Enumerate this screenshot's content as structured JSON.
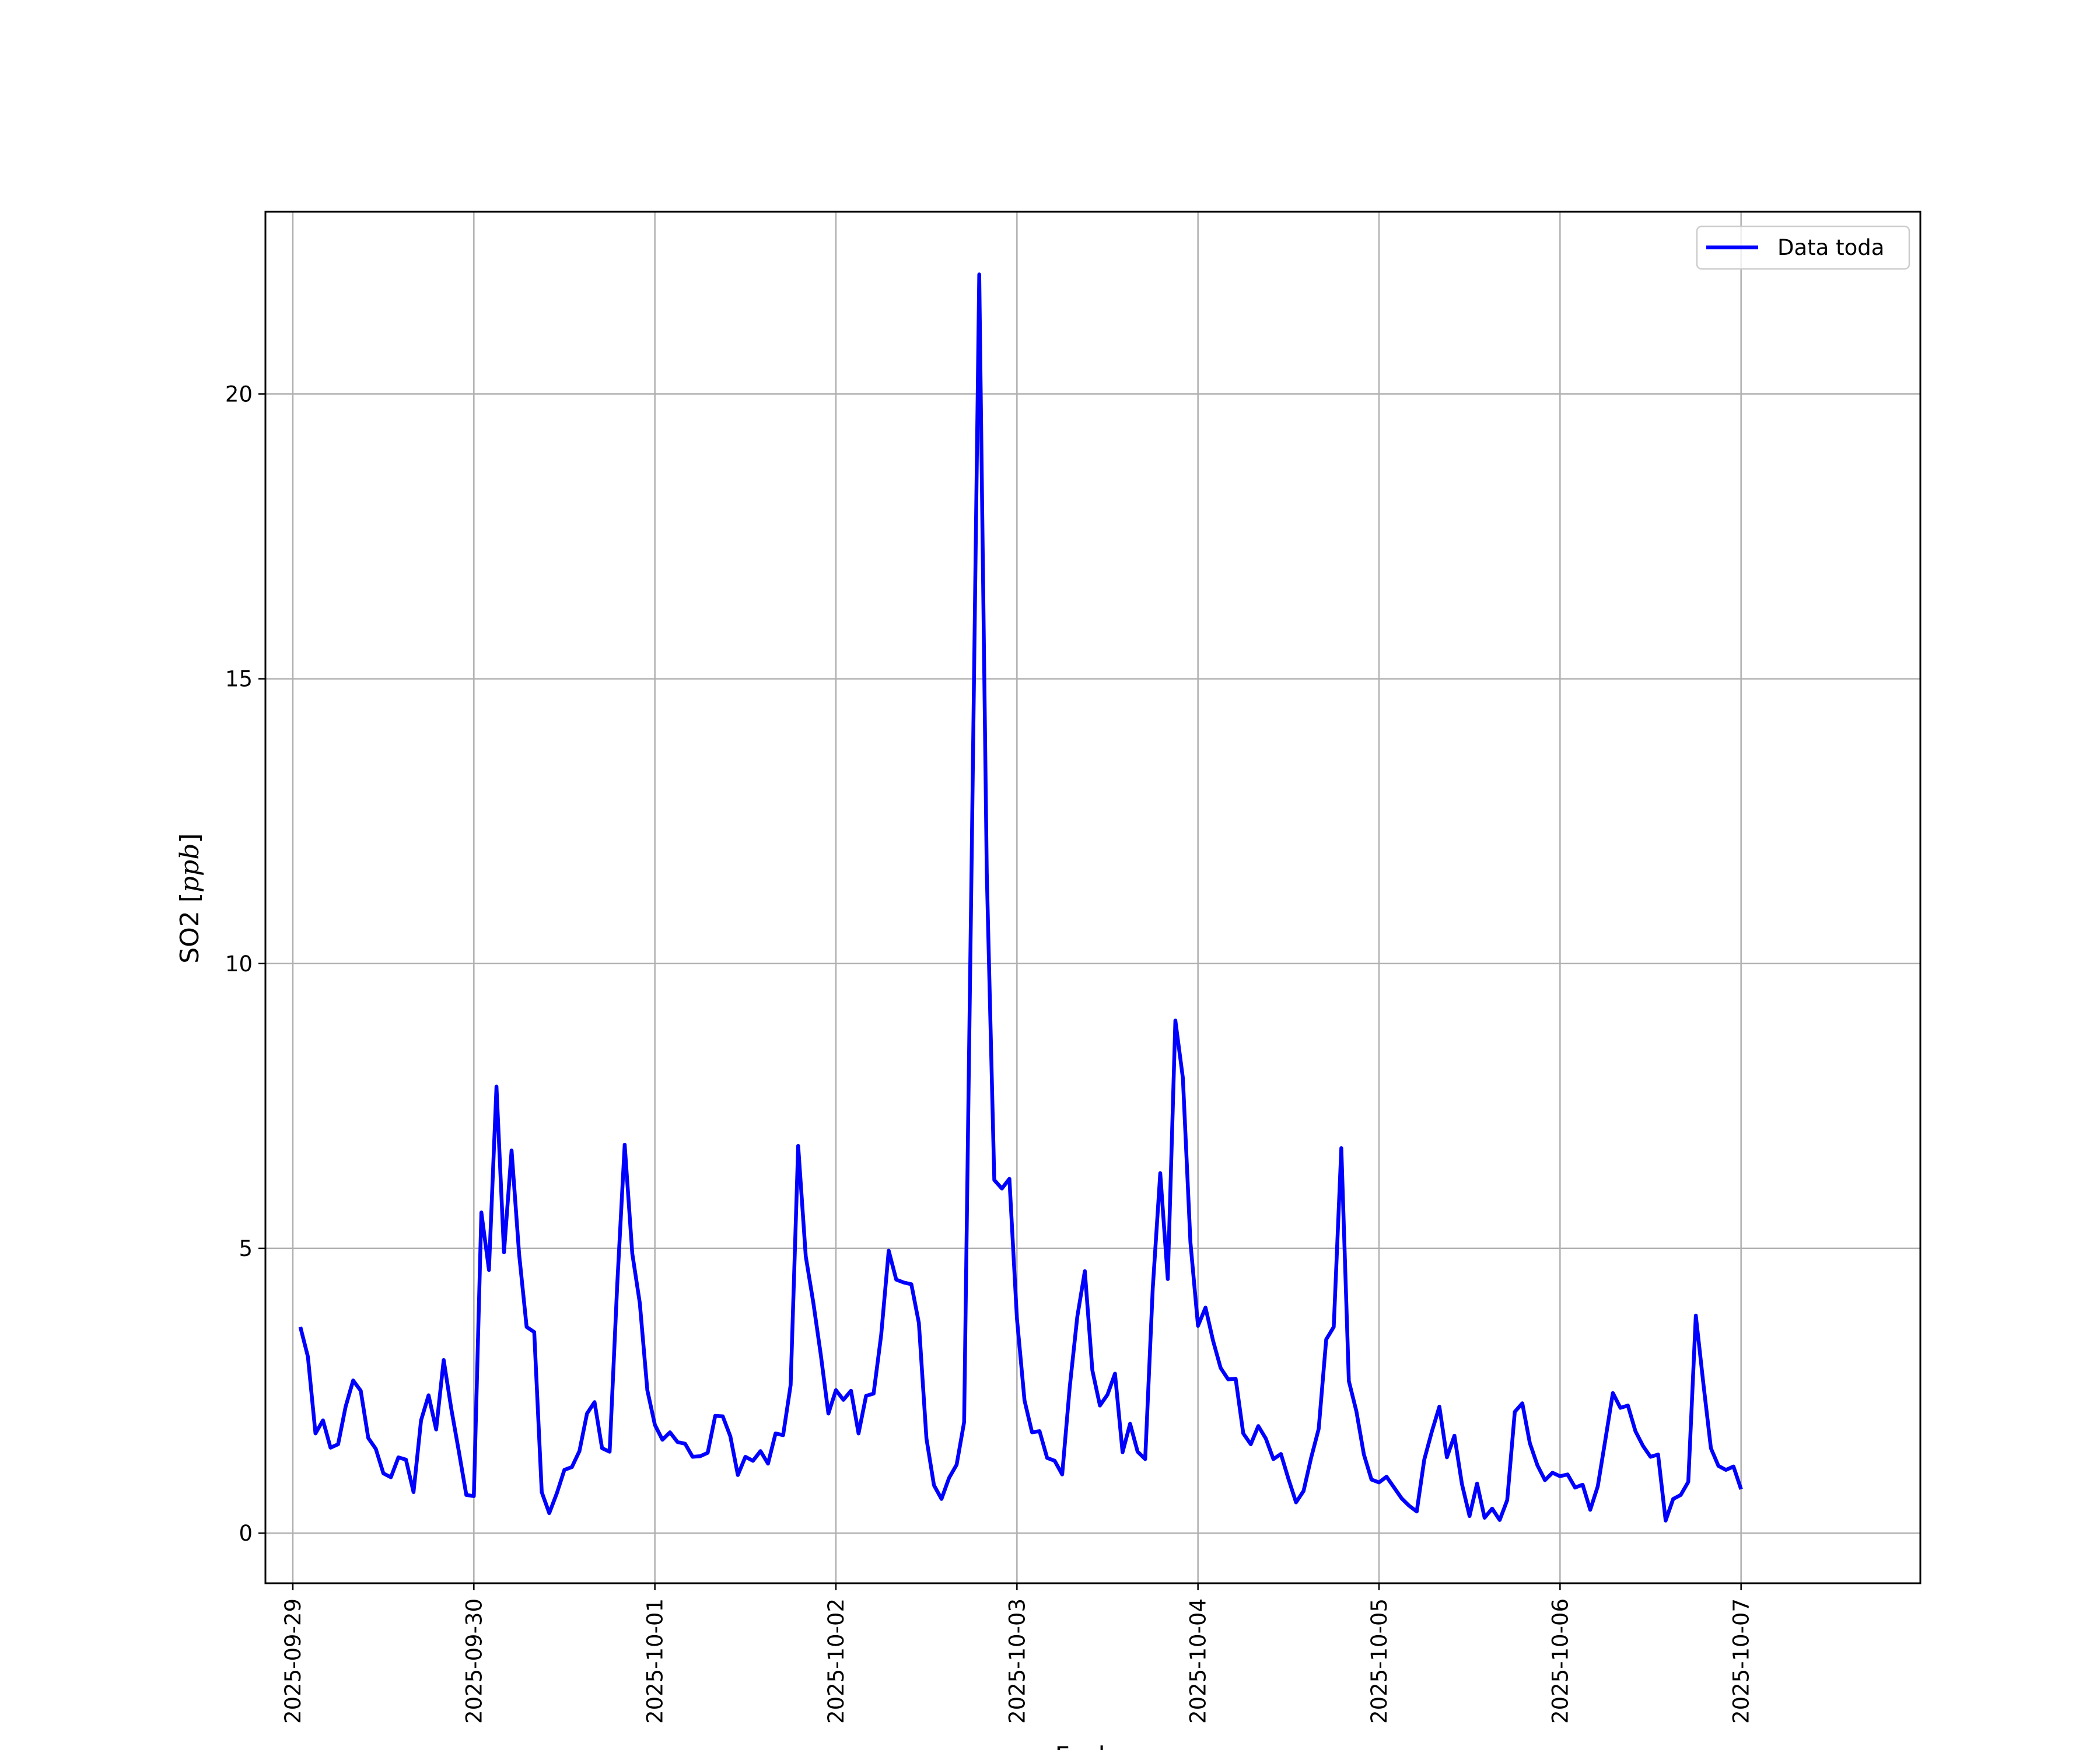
{
  "chart_data": {
    "type": "line",
    "title": "",
    "xlabel": "Fecha",
    "ylabel": "SO2 [ppb]",
    "ylabel_prefix": "SO2 [",
    "ylabel_unit": "ppb",
    "ylabel_suffix": "]",
    "x_tick_labels": [
      "2025-09-29",
      "2025-09-30",
      "2025-10-01",
      "2025-10-02",
      "2025-10-03",
      "2025-10-04",
      "2025-10-05",
      "2025-10-06",
      "2025-10-07"
    ],
    "y_ticks": [
      0,
      5,
      10,
      15,
      20
    ],
    "y_tick_labels": [
      "0",
      "5",
      "10",
      "15",
      "20"
    ],
    "xlim": [
      "2025-09-28 20:22",
      "2025-10-07 23:46"
    ],
    "ylim": [
      -0.88,
      23.2
    ],
    "grid": true,
    "legend_position": "top-right",
    "series": [
      {
        "name": "Data toda",
        "color": "#0000ff",
        "x_start": "2025-09-29 01:00",
        "x_step_hours": 1,
        "values": [
          3.62,
          3.1,
          1.75,
          1.98,
          1.5,
          1.56,
          2.22,
          2.68,
          2.5,
          1.67,
          1.48,
          1.05,
          0.98,
          1.33,
          1.29,
          0.72,
          1.98,
          2.42,
          1.82,
          3.04,
          2.19,
          1.44,
          0.67,
          0.65,
          5.63,
          4.62,
          7.84,
          4.93,
          6.72,
          4.9,
          3.62,
          3.53,
          0.72,
          0.35,
          0.7,
          1.11,
          1.16,
          1.44,
          2.1,
          2.3,
          1.49,
          1.43,
          4.34,
          6.82,
          4.91,
          4.04,
          2.51,
          1.9,
          1.64,
          1.77,
          1.6,
          1.57,
          1.34,
          1.35,
          1.41,
          2.06,
          2.05,
          1.7,
          1.02,
          1.34,
          1.27,
          1.44,
          1.22,
          1.75,
          1.72,
          2.6,
          6.8,
          4.86,
          4.05,
          3.13,
          2.1,
          2.51,
          2.34,
          2.5,
          1.75,
          2.41,
          2.45,
          3.48,
          4.96,
          4.45,
          4.4,
          4.37,
          3.69,
          1.66,
          0.84,
          0.6,
          0.97,
          1.2,
          1.95,
          11.82,
          22.1,
          11.6,
          6.2,
          6.05,
          6.22,
          3.77,
          2.33,
          1.77,
          1.79,
          1.32,
          1.27,
          1.03,
          2.56,
          3.8,
          4.6,
          2.86,
          2.24,
          2.43,
          2.8,
          1.42,
          1.92,
          1.43,
          1.3,
          4.29,
          6.32,
          4.46,
          9.0,
          7.99,
          5.11,
          3.64,
          3.96,
          3.38,
          2.9,
          2.7,
          2.71,
          1.75,
          1.56,
          1.88,
          1.66,
          1.3,
          1.39,
          0.95,
          0.54,
          0.74,
          1.32,
          1.83,
          3.4,
          3.62,
          6.76,
          2.67,
          2.14,
          1.38,
          0.94,
          0.89,
          0.99,
          0.8,
          0.61,
          0.48,
          0.38,
          1.29,
          1.78,
          2.22,
          1.33,
          1.71,
          0.86,
          0.3,
          0.87,
          0.27,
          0.43,
          0.23,
          0.58,
          2.13,
          2.28,
          1.58,
          1.19,
          0.93,
          1.06,
          1.0,
          1.03,
          0.8,
          0.85,
          0.41,
          0.82,
          1.63,
          2.46,
          2.2,
          2.24,
          1.79,
          1.53,
          1.34,
          1.38,
          0.22,
          0.6,
          0.67,
          0.9,
          3.82,
          2.63,
          1.49,
          1.18,
          1.11,
          1.17,
          0.77
        ]
      }
    ]
  }
}
